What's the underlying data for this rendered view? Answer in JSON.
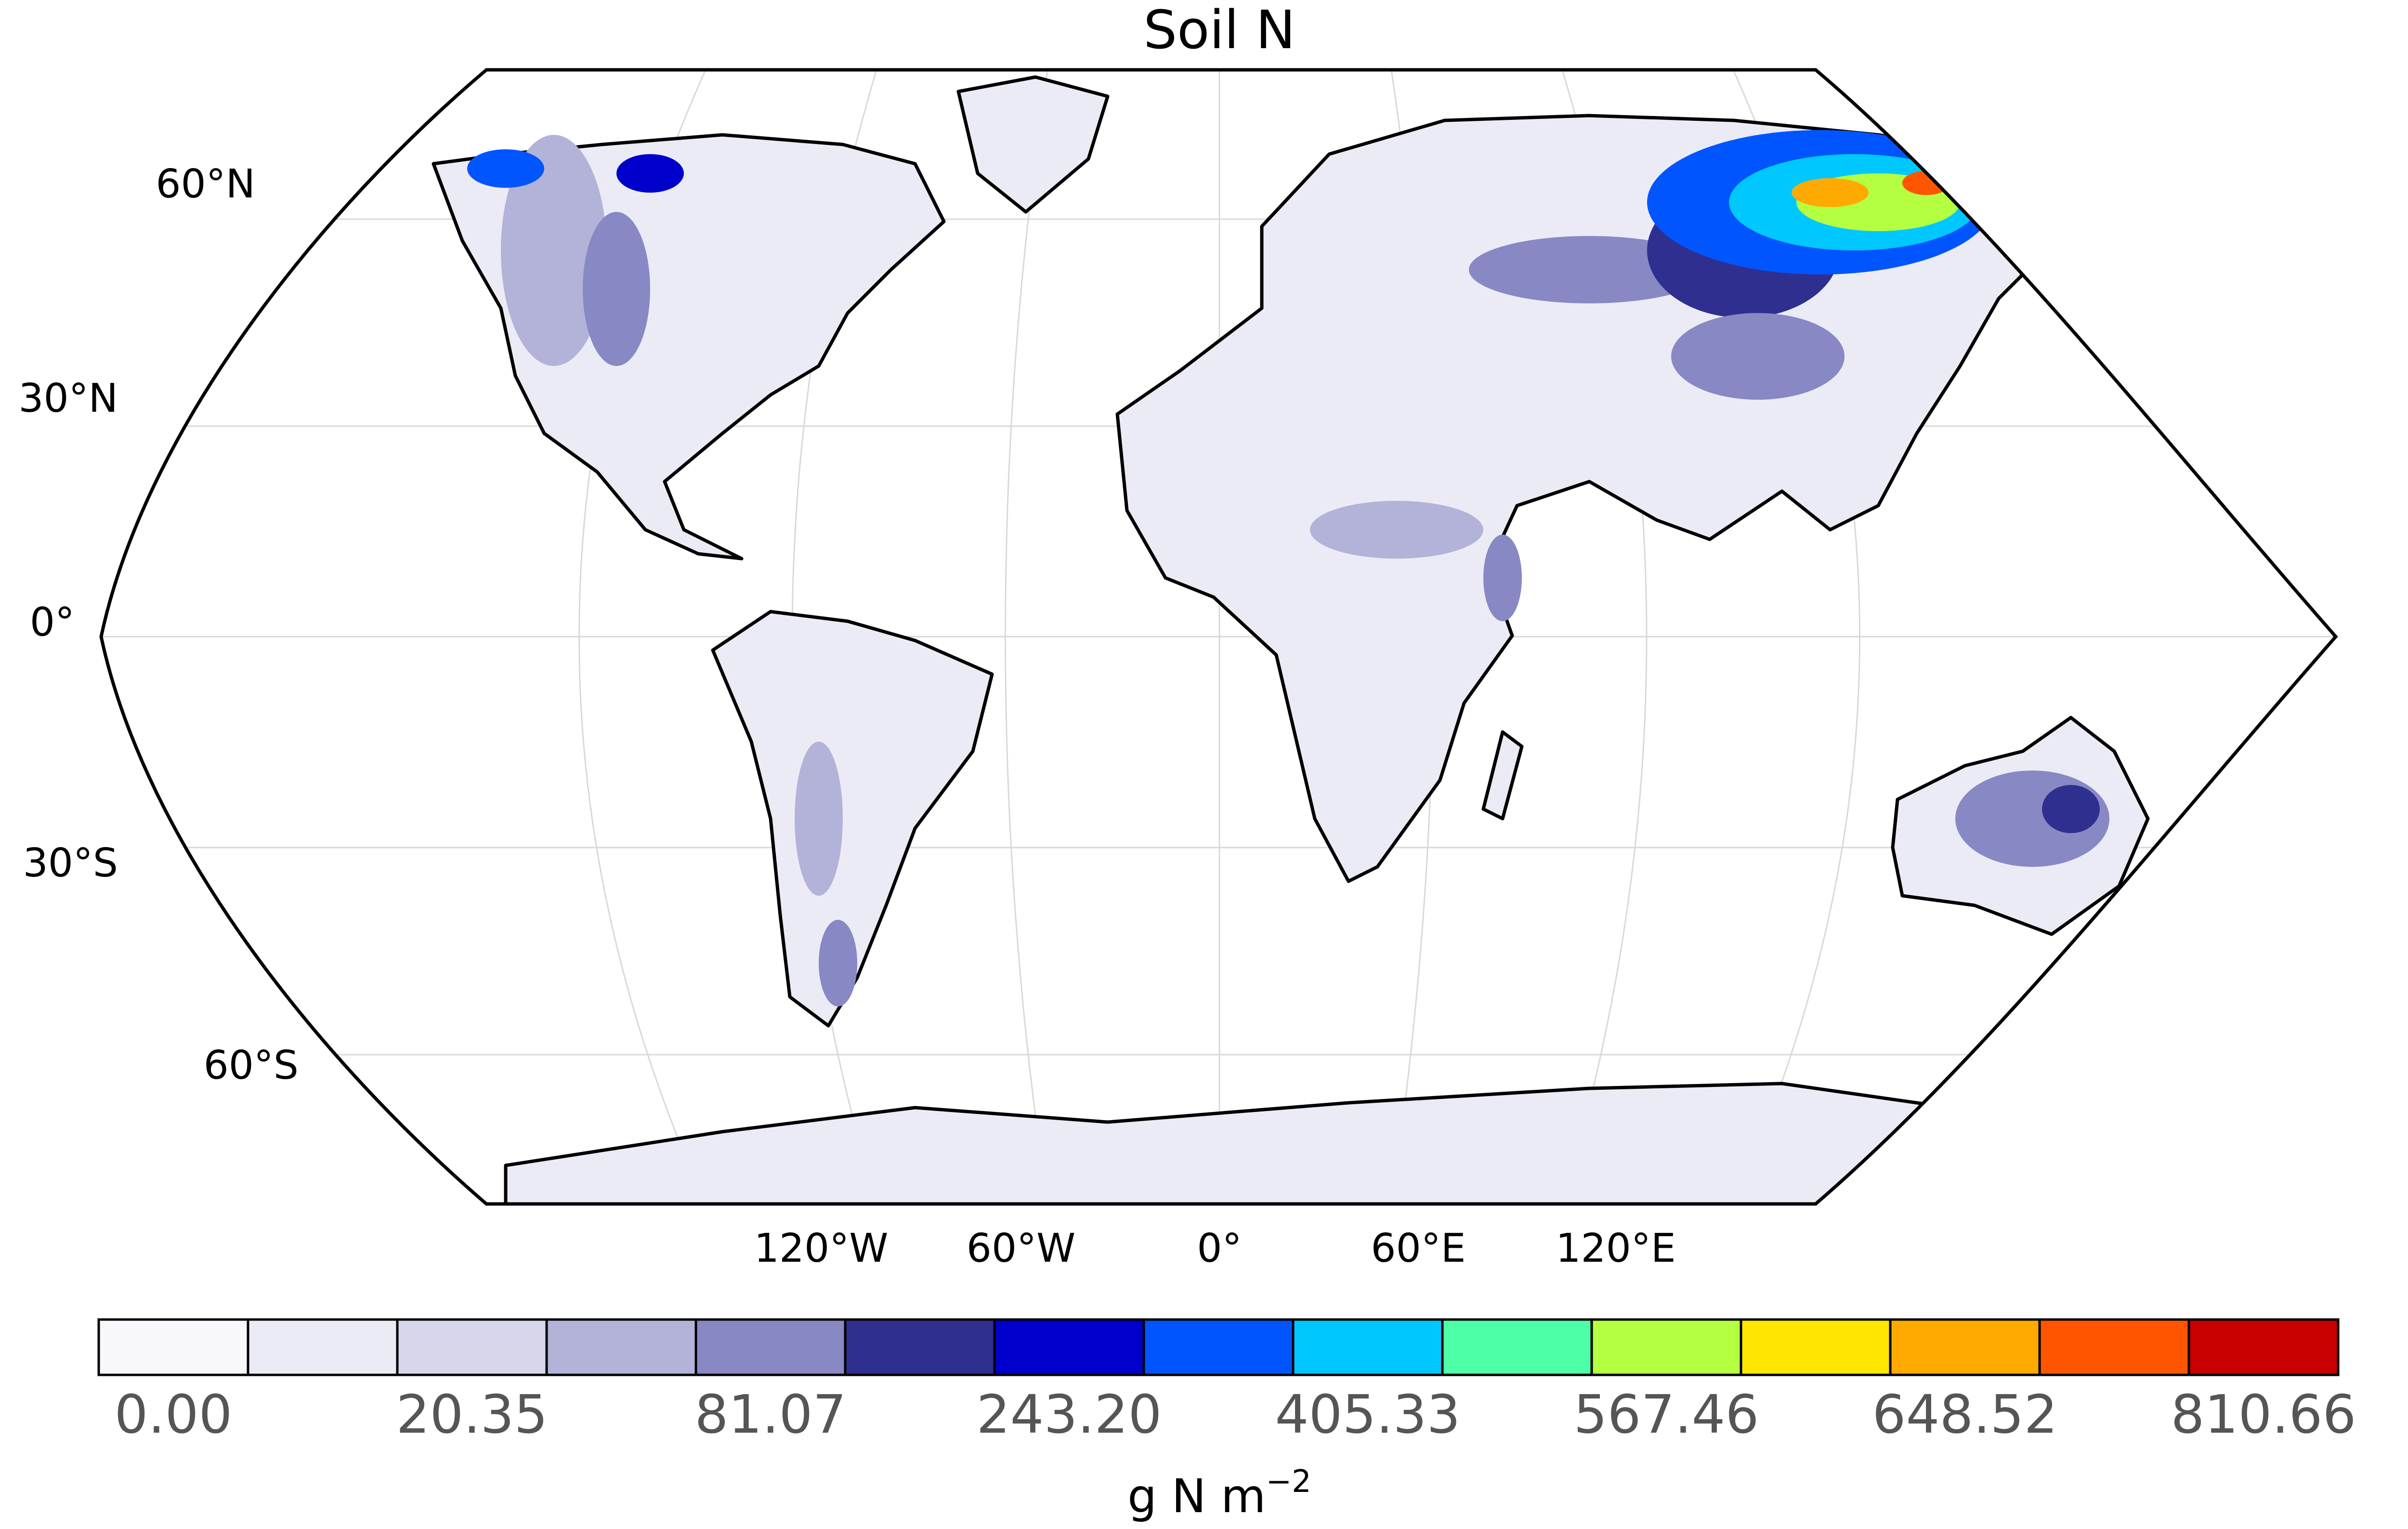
{
  "title": "Soil N",
  "lat_labels": [
    "60°N",
    "30°N",
    "0°",
    "30°S",
    "60°S"
  ],
  "lon_labels": [
    "120°W",
    "60°W",
    "0°",
    "60°E",
    "120°E"
  ],
  "colorbar": {
    "colors": [
      "#f7f7fc",
      "#ebebf5",
      "#d7d7ec",
      "#b3b3d9",
      "#8888c4",
      "#2f2f8f",
      "#0000cc",
      "#0055ff",
      "#00c8ff",
      "#4dffa6",
      "#b3ff40",
      "#ffe600",
      "#ffaa00",
      "#ff5500",
      "#c80000"
    ],
    "tick_labels": [
      "0.00",
      "20.35",
      "81.07",
      "243.20",
      "405.33",
      "567.46",
      "648.52",
      "810.66"
    ],
    "unit_base": "g N m",
    "unit_exp": "−2"
  }
}
